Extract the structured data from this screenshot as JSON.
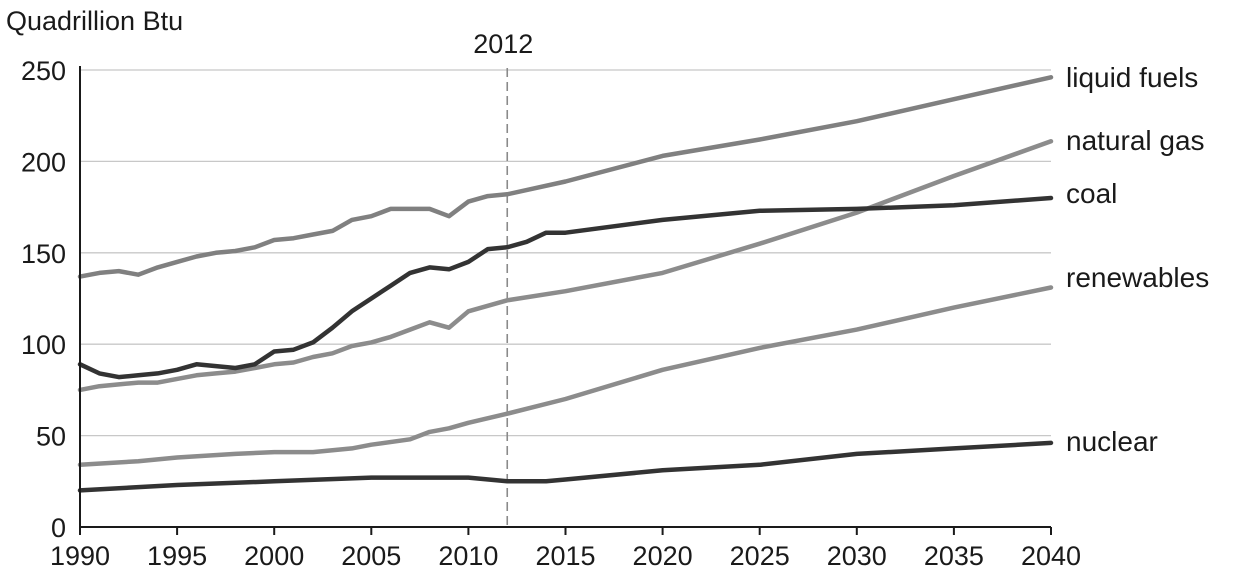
{
  "chart_data": {
    "type": "line",
    "ylabel": "Quadrillion Btu",
    "xlim": [
      1990,
      2040
    ],
    "ylim": [
      0,
      250
    ],
    "x_ticks": [
      1990,
      1995,
      2000,
      2005,
      2010,
      2015,
      2020,
      2025,
      2030,
      2035,
      2040
    ],
    "y_ticks": [
      0,
      50,
      100,
      150,
      200,
      250
    ],
    "grid": "horizontal",
    "annotation": {
      "x": 2012,
      "label": "2012",
      "style": "dashed-vertical"
    },
    "series": [
      {
        "name": "liquid fuels",
        "color": "#808080",
        "points": [
          [
            1990,
            137
          ],
          [
            1991,
            139
          ],
          [
            1992,
            140
          ],
          [
            1993,
            138
          ],
          [
            1994,
            142
          ],
          [
            1995,
            145
          ],
          [
            1996,
            148
          ],
          [
            1997,
            150
          ],
          [
            1998,
            151
          ],
          [
            1999,
            153
          ],
          [
            2000,
            157
          ],
          [
            2001,
            158
          ],
          [
            2002,
            160
          ],
          [
            2003,
            162
          ],
          [
            2004,
            168
          ],
          [
            2005,
            170
          ],
          [
            2006,
            174
          ],
          [
            2007,
            174
          ],
          [
            2008,
            174
          ],
          [
            2009,
            170
          ],
          [
            2010,
            178
          ],
          [
            2011,
            181
          ],
          [
            2012,
            182
          ],
          [
            2015,
            189
          ],
          [
            2020,
            203
          ],
          [
            2025,
            212
          ],
          [
            2030,
            222
          ],
          [
            2035,
            234
          ],
          [
            2040,
            246
          ]
        ]
      },
      {
        "name": "natural gas",
        "color": "#8c8c8c",
        "points": [
          [
            1990,
            75
          ],
          [
            1991,
            77
          ],
          [
            1992,
            78
          ],
          [
            1993,
            79
          ],
          [
            1994,
            79
          ],
          [
            1995,
            81
          ],
          [
            1996,
            83
          ],
          [
            1997,
            84
          ],
          [
            1998,
            85
          ],
          [
            1999,
            87
          ],
          [
            2000,
            89
          ],
          [
            2001,
            90
          ],
          [
            2002,
            93
          ],
          [
            2003,
            95
          ],
          [
            2004,
            99
          ],
          [
            2005,
            101
          ],
          [
            2006,
            104
          ],
          [
            2007,
            108
          ],
          [
            2008,
            112
          ],
          [
            2009,
            109
          ],
          [
            2010,
            118
          ],
          [
            2011,
            121
          ],
          [
            2012,
            124
          ],
          [
            2015,
            129
          ],
          [
            2020,
            139
          ],
          [
            2025,
            155
          ],
          [
            2030,
            172
          ],
          [
            2035,
            192
          ],
          [
            2040,
            211
          ]
        ]
      },
      {
        "name": "coal",
        "color": "#333333",
        "points": [
          [
            1990,
            89
          ],
          [
            1991,
            84
          ],
          [
            1992,
            82
          ],
          [
            1993,
            83
          ],
          [
            1994,
            84
          ],
          [
            1995,
            86
          ],
          [
            1996,
            89
          ],
          [
            1997,
            88
          ],
          [
            1998,
            87
          ],
          [
            1999,
            89
          ],
          [
            2000,
            96
          ],
          [
            2001,
            97
          ],
          [
            2002,
            101
          ],
          [
            2003,
            109
          ],
          [
            2004,
            118
          ],
          [
            2005,
            125
          ],
          [
            2006,
            132
          ],
          [
            2007,
            139
          ],
          [
            2008,
            142
          ],
          [
            2009,
            141
          ],
          [
            2010,
            145
          ],
          [
            2011,
            152
          ],
          [
            2012,
            153
          ],
          [
            2013,
            156
          ],
          [
            2014,
            161
          ],
          [
            2015,
            161
          ],
          [
            2020,
            168
          ],
          [
            2025,
            173
          ],
          [
            2030,
            174
          ],
          [
            2035,
            176
          ],
          [
            2040,
            180
          ]
        ]
      },
      {
        "name": "renewables",
        "color": "#8c8c8c",
        "points": [
          [
            1990,
            34
          ],
          [
            1993,
            36
          ],
          [
            1995,
            38
          ],
          [
            1998,
            40
          ],
          [
            2000,
            41
          ],
          [
            2002,
            41
          ],
          [
            2004,
            43
          ],
          [
            2005,
            45
          ],
          [
            2007,
            48
          ],
          [
            2008,
            52
          ],
          [
            2009,
            54
          ],
          [
            2010,
            57
          ],
          [
            2012,
            62
          ],
          [
            2015,
            70
          ],
          [
            2020,
            86
          ],
          [
            2025,
            98
          ],
          [
            2030,
            108
          ],
          [
            2035,
            120
          ],
          [
            2040,
            131
          ]
        ]
      },
      {
        "name": "nuclear",
        "color": "#333333",
        "points": [
          [
            1990,
            20
          ],
          [
            1995,
            23
          ],
          [
            2000,
            25
          ],
          [
            2005,
            27
          ],
          [
            2010,
            27
          ],
          [
            2012,
            25
          ],
          [
            2014,
            25
          ],
          [
            2015,
            26
          ],
          [
            2020,
            31
          ],
          [
            2025,
            34
          ],
          [
            2030,
            40
          ],
          [
            2035,
            43
          ],
          [
            2040,
            46
          ]
        ]
      }
    ]
  }
}
